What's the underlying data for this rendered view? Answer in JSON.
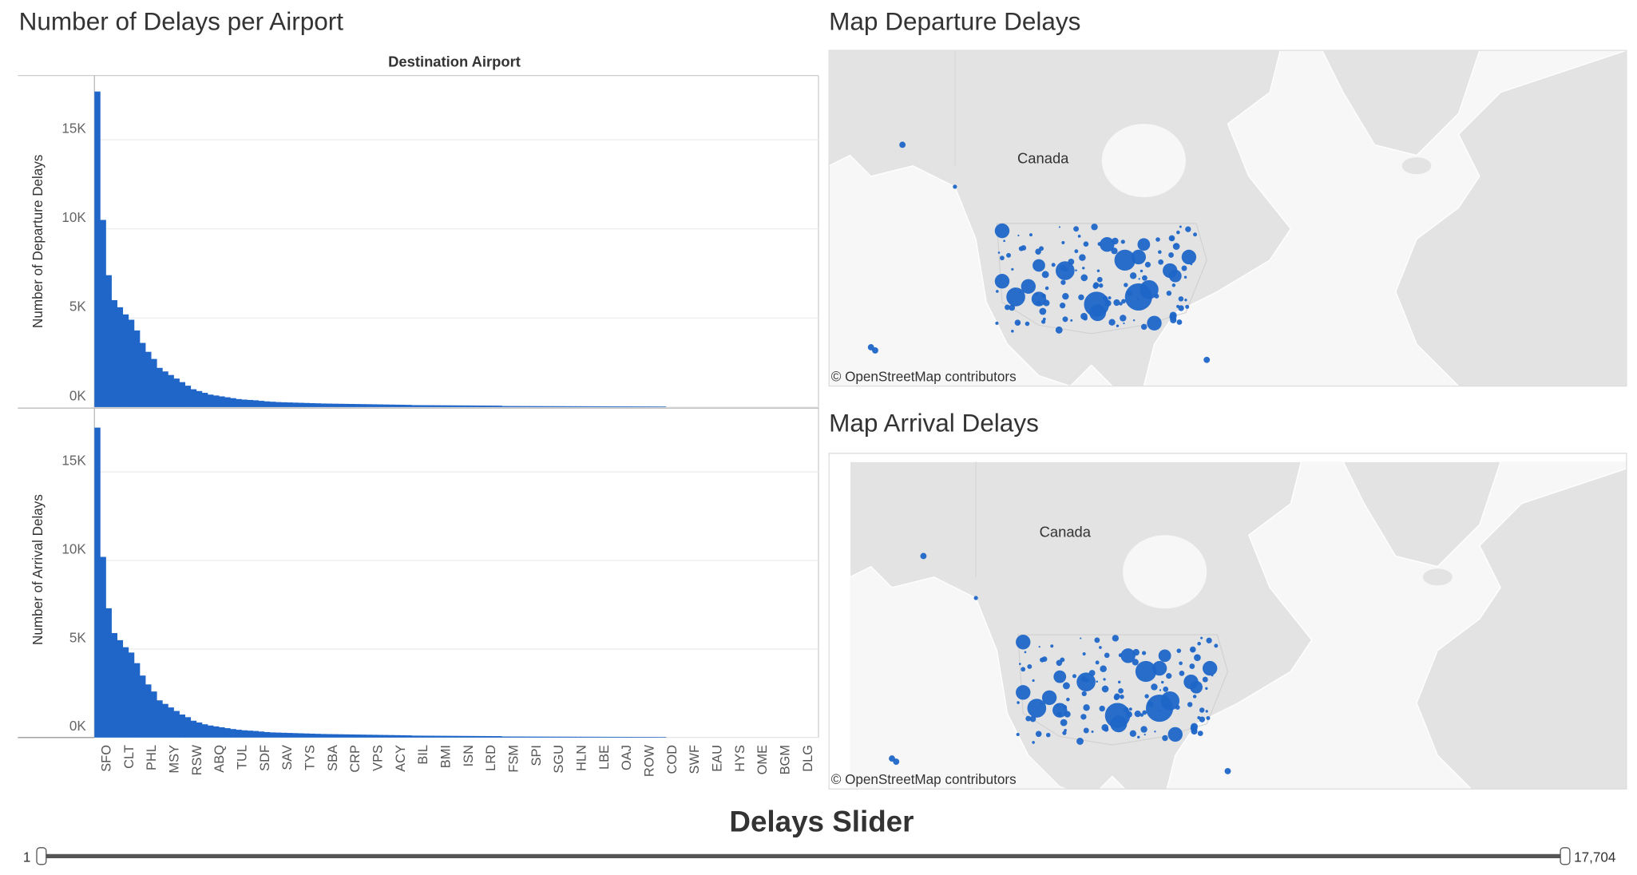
{
  "dashboard_title": "Number of Delays per Airport",
  "chart_data": [
    {
      "type": "bar",
      "x_label": "Destination Airport",
      "y_label": "Number of Departure Delays",
      "values": [
        17704,
        10500,
        7400,
        6000,
        5600,
        5200,
        4900,
        4300,
        3600,
        3100,
        2700,
        2200,
        2000,
        1800,
        1600,
        1400,
        1200,
        1000,
        900,
        800,
        700,
        650,
        600,
        550,
        500,
        450,
        420,
        400,
        380,
        350,
        320,
        300,
        280,
        270,
        260,
        250,
        240,
        230,
        220,
        210,
        200,
        195,
        190,
        185,
        180,
        175,
        170,
        165,
        160,
        155,
        150,
        145,
        140,
        135,
        130,
        125,
        110,
        108,
        106,
        104,
        102,
        100,
        98,
        96,
        94,
        92,
        90,
        88,
        86,
        84,
        82,
        80,
        60,
        59,
        58,
        57,
        56,
        55,
        54,
        53,
        52,
        51,
        50,
        49,
        48,
        47,
        46,
        45,
        44,
        43,
        42,
        41,
        40,
        39,
        38,
        37,
        36,
        35,
        34,
        33,
        32,
        0,
        0,
        0,
        0,
        0,
        0,
        0,
        0,
        0,
        0,
        0,
        0,
        0,
        0,
        0,
        0,
        0,
        0,
        0,
        0,
        0,
        0,
        0,
        0,
        0,
        0,
        0
      ],
      "color": "#1f66c8",
      "ylim": [
        0,
        18600
      ],
      "yticks": [
        {
          "value": 0,
          "label": "0K"
        },
        {
          "value": 5000,
          "label": "5K"
        },
        {
          "value": 10000,
          "label": "10K"
        },
        {
          "value": 15000,
          "label": "15K"
        }
      ],
      "grid": true
    },
    {
      "type": "bar",
      "y_label": "Number of Arrival Delays",
      "categories": [
        null,
        "SFO",
        null,
        null,
        null,
        "CLT",
        null,
        null,
        null,
        "PHL",
        null,
        null,
        null,
        "MSY",
        null,
        null,
        null,
        "RSW",
        null,
        null,
        null,
        "ABQ",
        null,
        null,
        null,
        "TUL",
        null,
        null,
        null,
        "SDF",
        null,
        null,
        null,
        "SAV",
        null,
        null,
        null,
        "TYS",
        null,
        null,
        null,
        "SBA",
        null,
        null,
        null,
        "CRP",
        null,
        null,
        null,
        "VPS",
        null,
        null,
        null,
        "ACY",
        null,
        null,
        null,
        "BIL",
        null,
        null,
        null,
        "BMI",
        null,
        null,
        null,
        "ISN",
        null,
        null,
        null,
        "LRD",
        null,
        null,
        null,
        "FSM",
        null,
        null,
        null,
        "SPI",
        null,
        null,
        null,
        "SGU",
        null,
        null,
        null,
        "HLN",
        null,
        null,
        null,
        "LBE",
        null,
        null,
        null,
        "OAJ",
        null,
        null,
        null,
        "ROW",
        null,
        null,
        null,
        "COD",
        null,
        null,
        null,
        "SWF",
        null,
        null,
        null,
        "EAU",
        null,
        null,
        null,
        "HYS",
        null,
        null,
        null,
        "OME",
        null,
        null,
        null,
        "BGM",
        null,
        null,
        null,
        "DLG",
        null,
        null
      ],
      "values": [
        17500,
        10200,
        7300,
        5900,
        5500,
        5100,
        4800,
        4200,
        3500,
        3000,
        2600,
        2100,
        1900,
        1700,
        1500,
        1300,
        1150,
        950,
        850,
        750,
        680,
        630,
        580,
        530,
        480,
        440,
        410,
        390,
        370,
        340,
        310,
        290,
        280,
        270,
        260,
        250,
        240,
        230,
        220,
        210,
        200,
        195,
        190,
        185,
        180,
        175,
        170,
        165,
        160,
        155,
        150,
        145,
        140,
        135,
        130,
        125,
        110,
        108,
        106,
        104,
        102,
        100,
        98,
        96,
        94,
        92,
        90,
        88,
        86,
        84,
        82,
        80,
        60,
        59,
        58,
        57,
        56,
        55,
        54,
        53,
        52,
        51,
        50,
        49,
        48,
        47,
        46,
        45,
        44,
        43,
        42,
        41,
        40,
        39,
        38,
        37,
        36,
        35,
        34,
        33,
        32,
        0,
        0,
        0,
        0,
        0,
        0,
        0,
        0,
        0,
        0,
        0,
        0,
        0,
        0,
        0,
        0,
        0,
        0,
        0,
        0,
        0,
        0,
        0,
        0,
        0,
        0,
        0
      ],
      "color": "#1f66c8",
      "ylim": [
        0,
        18600
      ],
      "yticks": [
        {
          "value": 0,
          "label": "0K"
        },
        {
          "value": 5000,
          "label": "5K"
        },
        {
          "value": 10000,
          "label": "10K"
        },
        {
          "value": 15000,
          "label": "15K"
        }
      ],
      "grid": true
    }
  ],
  "maps": [
    {
      "title": "Map Departure Delays",
      "region_label": "Canada",
      "attribution": "© OpenStreetMap contributors"
    },
    {
      "title": "Map Arrival Delays",
      "region_label": "Canada",
      "attribution": "© OpenStreetMap contributors"
    }
  ],
  "slider": {
    "title": "Delays Slider",
    "min": "1",
    "max": "17,704"
  }
}
